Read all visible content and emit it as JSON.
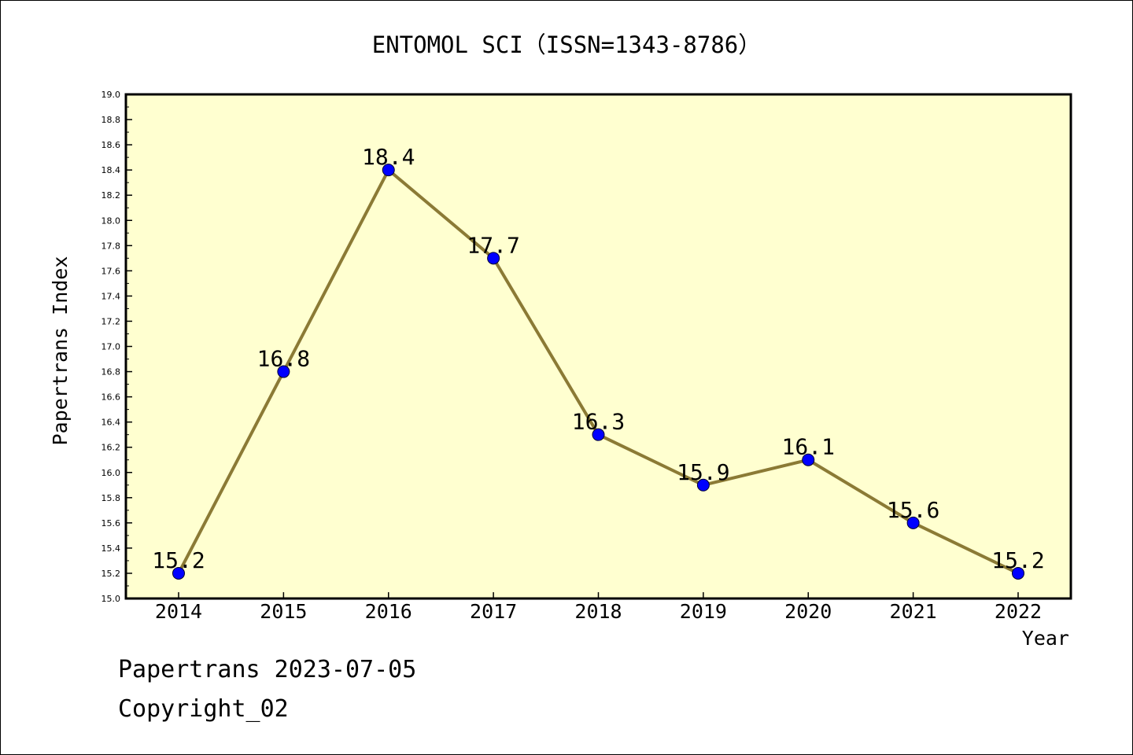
{
  "chart_data": {
    "type": "line",
    "title": "ENTOMOL SCI（ISSN=1343-8786）",
    "xlabel": "Year",
    "ylabel": "Papertrans Index",
    "categories": [
      "2014",
      "2015",
      "2016",
      "2017",
      "2018",
      "2019",
      "2020",
      "2021",
      "2022"
    ],
    "values": [
      15.2,
      16.8,
      18.4,
      17.7,
      16.3,
      15.9,
      16.1,
      15.6,
      15.2
    ],
    "data_labels": [
      "15.2",
      "16.8",
      "18.4",
      "17.7",
      "16.3",
      "15.9",
      "16.1",
      "15.6",
      "15.2"
    ],
    "ylim": [
      15.0,
      19.0
    ],
    "y_ticks": [
      "15.0",
      "15.2",
      "15.4",
      "15.6",
      "15.8",
      "16.0",
      "16.2",
      "16.4",
      "16.6",
      "16.8",
      "17.0",
      "17.2",
      "17.4",
      "17.6",
      "17.8",
      "18.0",
      "18.2",
      "18.4",
      "18.6",
      "18.8",
      "19.0"
    ],
    "grid": false,
    "colors": {
      "plot_background": "#ffffd0",
      "line": "#8b7a35",
      "marker": "#0000ff"
    }
  },
  "footer": {
    "line1": "Papertrans 2023-07-05",
    "line2": "Copyright_02"
  }
}
